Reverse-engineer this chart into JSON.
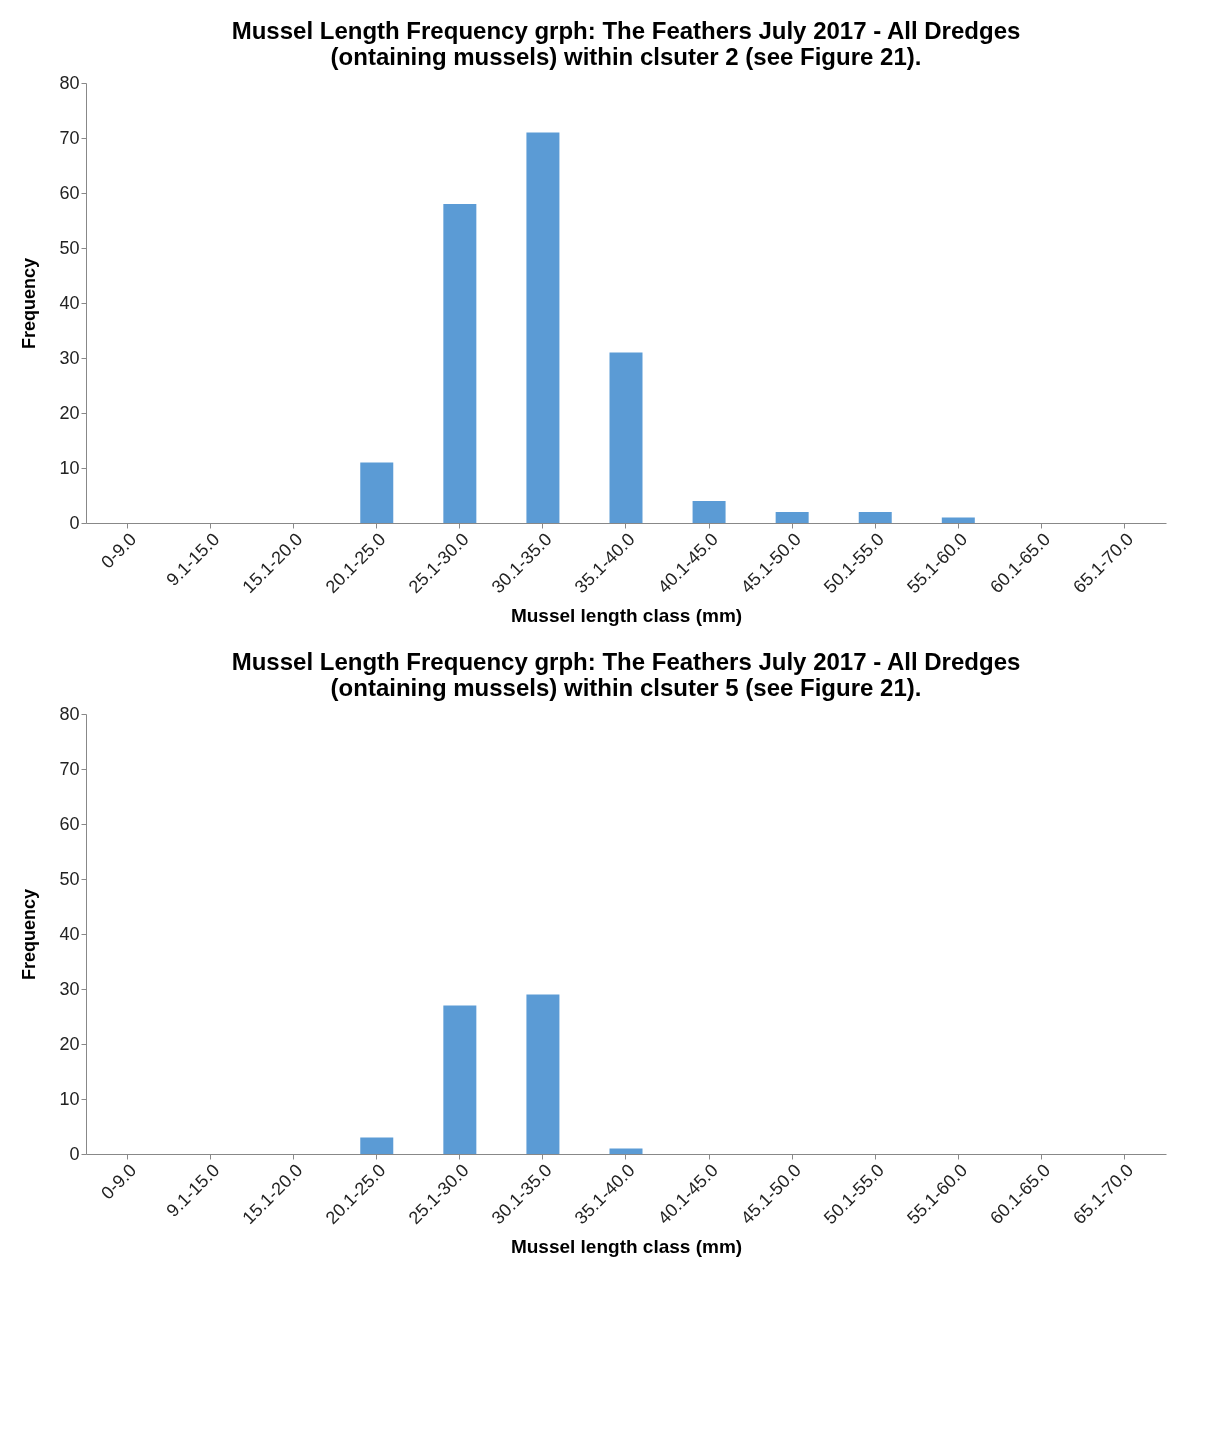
{
  "chart_data": [
    {
      "type": "bar",
      "title": [
        "Mussel Length Frequency grph: The Feathers July 2017 - All Dredges",
        "(ontaining mussels) within clsuter 2 (see Figure 21)."
      ],
      "xlabel": "Mussel length class (mm)",
      "ylabel": "Frequency",
      "categories": [
        "0-9.0",
        "9.1-15.0",
        "15.1-20.0",
        "20.1-25.0",
        "25.1-30.0",
        "30.1-35.0",
        "35.1-40.0",
        "40.1-45.0",
        "45.1-50.0",
        "50.1-55.0",
        "55.1-60.0",
        "60.1-65.0",
        "65.1-70.0"
      ],
      "values": [
        0,
        0,
        0,
        11,
        58,
        71,
        31,
        4,
        2,
        2,
        1,
        0,
        0
      ],
      "color": "#5b9bd5",
      "ylim": [
        0,
        80
      ],
      "yticks": [
        0,
        10,
        20,
        30,
        40,
        50,
        60,
        70,
        80
      ],
      "grid": false
    },
    {
      "type": "bar",
      "title": [
        "Mussel Length Frequency grph: The Feathers July 2017 - All Dredges",
        "(ontaining mussels) within clsuter 5 (see Figure 21)."
      ],
      "xlabel": "Mussel length class (mm)",
      "ylabel": "Frequency",
      "categories": [
        "0-9.0",
        "9.1-15.0",
        "15.1-20.0",
        "20.1-25.0",
        "25.1-30.0",
        "30.1-35.0",
        "35.1-40.0",
        "40.1-45.0",
        "45.1-50.0",
        "50.1-55.0",
        "55.1-60.0",
        "60.1-65.0",
        "65.1-70.0"
      ],
      "values": [
        0,
        0,
        0,
        3,
        27,
        29,
        1,
        0,
        0,
        0,
        0,
        0,
        0
      ],
      "color": "#5b9bd5",
      "ylim": [
        0,
        80
      ],
      "yticks": [
        0,
        10,
        20,
        30,
        40,
        50,
        60,
        70,
        80
      ],
      "grid": false
    }
  ]
}
